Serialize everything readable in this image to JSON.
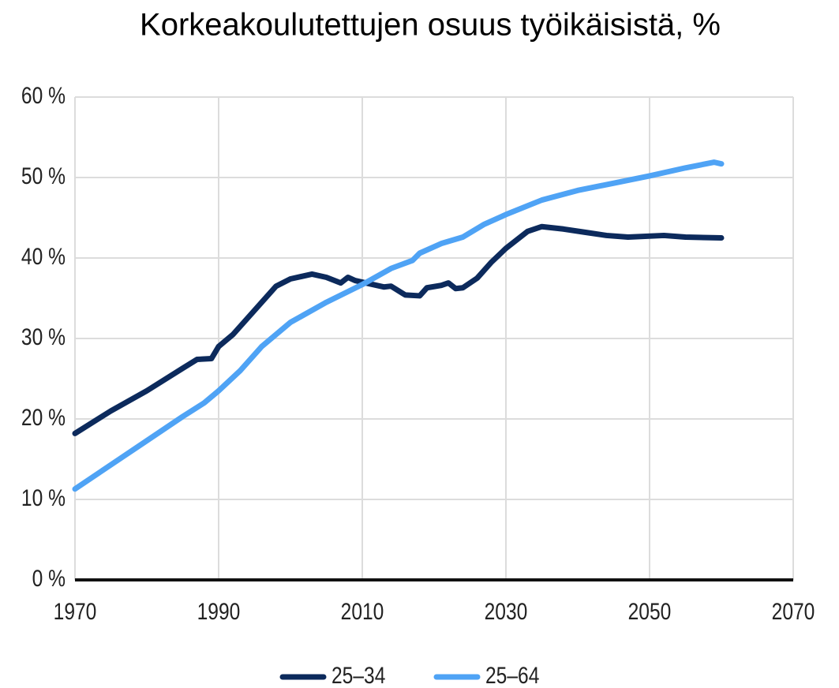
{
  "chart_data": {
    "type": "line",
    "title": "Korkeakoulutettujen osuus työikäisistä, %",
    "series": [
      {
        "name": "25–34",
        "color": "#0c2a5c",
        "x": [
          1970,
          1975,
          1980,
          1985,
          1987,
          1989,
          1990,
          1992,
          1995,
          1998,
          2000,
          2003,
          2005,
          2007,
          2008,
          2009,
          2012,
          2013,
          2014,
          2016,
          2018,
          2019,
          2021,
          2022,
          2023,
          2024,
          2026,
          2028,
          2030,
          2033,
          2035,
          2038,
          2041,
          2044,
          2047,
          2052,
          2055,
          2060
        ],
        "values": [
          18.2,
          21,
          23.5,
          26.3,
          27.4,
          27.5,
          29,
          30.5,
          33.5,
          36.5,
          37.4,
          38,
          37.6,
          36.9,
          37.6,
          37.2,
          36.6,
          36.4,
          36.5,
          35.4,
          35.3,
          36.3,
          36.6,
          36.9,
          36.2,
          36.3,
          37.5,
          39.5,
          41.2,
          43.3,
          43.9,
          43.6,
          43.2,
          42.8,
          42.6,
          42.8,
          42.6,
          42.5
        ]
      },
      {
        "name": "25–64",
        "color": "#4fa3f5",
        "x": [
          1970,
          1975,
          1980,
          1985,
          1988,
          1990,
          1993,
          1996,
          2000,
          2005,
          2010,
          2014,
          2017,
          2018,
          2021,
          2024,
          2027,
          2030,
          2035,
          2040,
          2045,
          2050,
          2055,
          2059,
          2060
        ],
        "values": [
          11.3,
          14.3,
          17.3,
          20.3,
          22,
          23.5,
          26,
          29,
          32,
          34.5,
          36.7,
          38.7,
          39.7,
          40.6,
          41.8,
          42.6,
          44.2,
          45.4,
          47.2,
          48.4,
          49.3,
          50.2,
          51.2,
          51.9,
          51.7
        ]
      }
    ],
    "xlim": [
      1970,
      2070
    ],
    "xticks": [
      1970,
      1990,
      2010,
      2030,
      2050,
      2070
    ],
    "ylim": [
      0,
      60
    ],
    "yticks": [
      {
        "value": 0,
        "label": "0 %"
      },
      {
        "value": 10,
        "label": "10 %"
      },
      {
        "value": 20,
        "label": "20 %"
      },
      {
        "value": 30,
        "label": "30 %"
      },
      {
        "value": 40,
        "label": "40 %"
      },
      {
        "value": 50,
        "label": "50 %"
      },
      {
        "value": 60,
        "label": "60 %"
      }
    ],
    "grid": true,
    "legend": "bottom"
  }
}
